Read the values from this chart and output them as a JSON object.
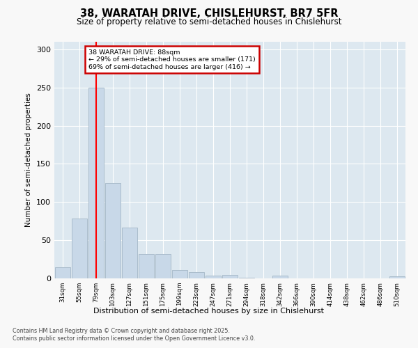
{
  "title1": "38, WARATAH DRIVE, CHISLEHURST, BR7 5FR",
  "title2": "Size of property relative to semi-detached houses in Chislehurst",
  "xlabel": "Distribution of semi-detached houses by size in Chislehurst",
  "ylabel": "Number of semi-detached properties",
  "bins": [
    "31sqm",
    "55sqm",
    "79sqm",
    "103sqm",
    "127sqm",
    "151sqm",
    "175sqm",
    "199sqm",
    "223sqm",
    "247sqm",
    "271sqm",
    "294sqm",
    "318sqm",
    "342sqm",
    "366sqm",
    "390sqm",
    "414sqm",
    "438sqm",
    "462sqm",
    "486sqm",
    "510sqm"
  ],
  "values": [
    15,
    78,
    250,
    125,
    67,
    32,
    32,
    11,
    8,
    4,
    5,
    1,
    0,
    4,
    0,
    0,
    0,
    0,
    0,
    0,
    3
  ],
  "bar_color": "#c8d8e8",
  "bar_edge_color": "#aabccc",
  "red_line_x": 2.0,
  "property_label": "38 WARATAH DRIVE: 88sqm",
  "smaller_pct": "29%",
  "smaller_n": 171,
  "larger_pct": "69%",
  "larger_n": 416,
  "annotation_box_color": "#ffffff",
  "annotation_box_edge": "#cc0000",
  "ylim": [
    0,
    310
  ],
  "yticks": [
    0,
    50,
    100,
    150,
    200,
    250,
    300
  ],
  "fig_bg_color": "#f8f8f8",
  "plot_bg_color": "#dde8f0",
  "footer1": "Contains HM Land Registry data © Crown copyright and database right 2025.",
  "footer2": "Contains public sector information licensed under the Open Government Licence v3.0."
}
